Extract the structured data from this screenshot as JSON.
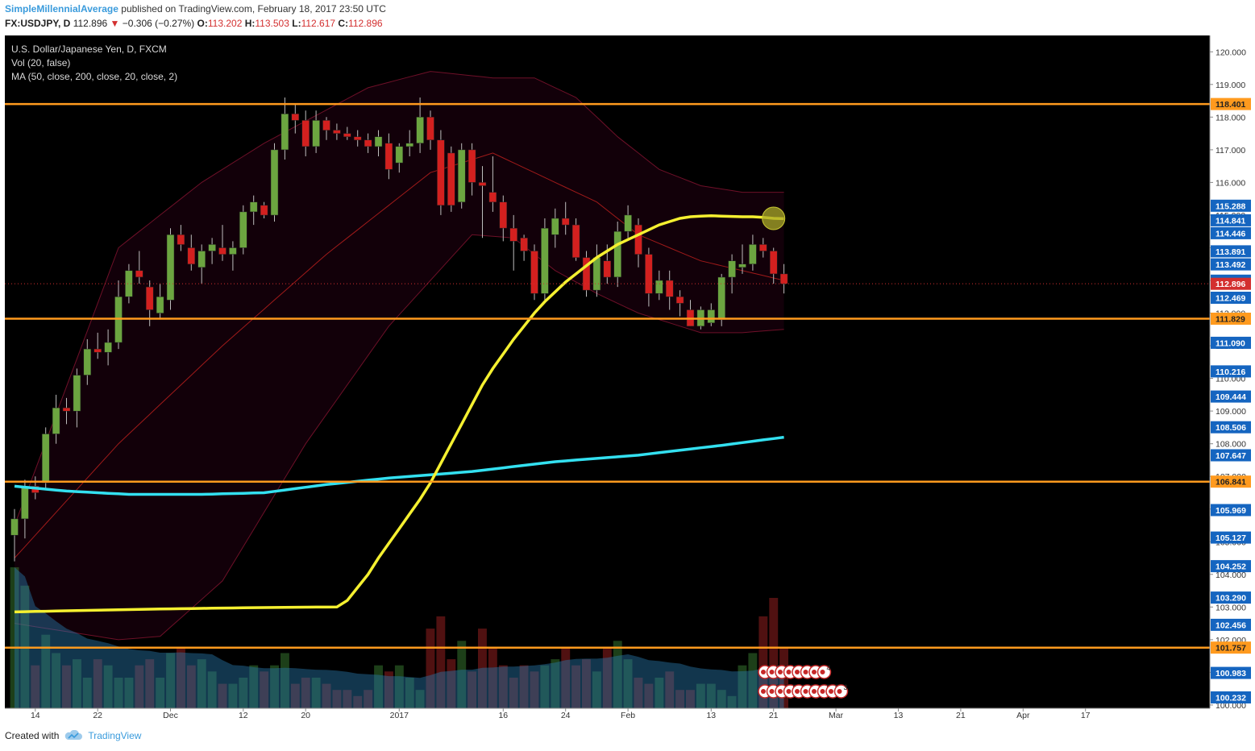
{
  "header": {
    "author": "SimpleMillennialAverage",
    "published": "published on TradingView.com, February 18, 2017 23:50 UTC"
  },
  "symbol_line": {
    "symbol": "FX:USDJPY, D",
    "last": "112.896",
    "arrow": "▼",
    "change": "−0.306 (−0.27%)",
    "open_label": "O:",
    "open": "113.202",
    "high_label": "H:",
    "high": "113.503",
    "low_label": "L:",
    "low": "112.617",
    "close_label": "C:",
    "close": "112.896"
  },
  "legend": {
    "line1": "U.S. Dollar/Japanese Yen, D, FXCM",
    "line2": "Vol (20, false)",
    "line3": "MA (50, close, 200, close, 20, close, 2)"
  },
  "footer": {
    "created_with": "Created with",
    "brand": "TradingView",
    "brand_icon": "tradingview-cloud-icon"
  },
  "colors": {
    "background": "#000000",
    "up_candle": "#6ca540",
    "down_candle": "#d3201f",
    "ma50": "#f5f030",
    "ma200": "#33e0f0",
    "level_line": "#ff9a1e",
    "axis_label_blue": "#1565c0",
    "axis_label_orange": "#ff9a1e",
    "axis_label_red": "#d32f2f"
  },
  "chart_data": {
    "type": "candlestick",
    "y_range": [
      99.9,
      120.5
    ],
    "y_ticks": [
      "120.000",
      "119.000",
      "118.000",
      "117.000",
      "116.000",
      "115.000",
      "114.000",
      "113.000",
      "112.000",
      "111.000",
      "110.000",
      "109.000",
      "108.000",
      "107.000",
      "106.000",
      "105.000",
      "104.000",
      "103.000",
      "102.000",
      "101.000",
      "100.000"
    ],
    "x_tick_labels": [
      "14",
      "22",
      "Dec",
      "12",
      "20",
      "2017",
      "16",
      "24",
      "Feb",
      "13",
      "21",
      "Mar",
      "13",
      "21",
      "Apr",
      "17"
    ],
    "candles": [
      {
        "date": "2016-11-10",
        "open": 105.2,
        "high": 106.0,
        "low": 104.4,
        "close": 105.7
      },
      {
        "date": "2016-11-11",
        "open": 105.7,
        "high": 106.9,
        "low": 105.1,
        "close": 106.7
      },
      {
        "date": "2016-11-14",
        "open": 106.7,
        "high": 107.0,
        "low": 106.3,
        "close": 106.5
      },
      {
        "date": "2016-11-15",
        "open": 106.8,
        "high": 108.5,
        "low": 106.6,
        "close": 108.3
      },
      {
        "date": "2016-11-16",
        "open": 108.3,
        "high": 109.5,
        "low": 108.0,
        "close": 109.1
      },
      {
        "date": "2016-11-17",
        "open": 109.1,
        "high": 109.4,
        "low": 108.6,
        "close": 109.0
      },
      {
        "date": "2016-11-18",
        "open": 109.0,
        "high": 110.3,
        "low": 108.5,
        "close": 110.1
      },
      {
        "date": "2016-11-21",
        "open": 110.1,
        "high": 111.2,
        "low": 109.8,
        "close": 110.9
      },
      {
        "date": "2016-11-22",
        "open": 110.9,
        "high": 111.4,
        "low": 110.6,
        "close": 110.8
      },
      {
        "date": "2016-11-23",
        "open": 110.8,
        "high": 111.5,
        "low": 110.4,
        "close": 111.1
      },
      {
        "date": "2016-11-24",
        "open": 111.1,
        "high": 113.0,
        "low": 110.9,
        "close": 112.5
      },
      {
        "date": "2016-11-25",
        "open": 112.5,
        "high": 113.5,
        "low": 112.3,
        "close": 113.3
      },
      {
        "date": "2016-11-28",
        "open": 113.3,
        "high": 113.9,
        "low": 112.9,
        "close": 113.1
      },
      {
        "date": "2016-11-29",
        "open": 112.8,
        "high": 113.0,
        "low": 111.6,
        "close": 112.1
      },
      {
        "date": "2016-11-30",
        "open": 112.0,
        "high": 112.9,
        "low": 111.8,
        "close": 112.5
      },
      {
        "date": "2016-12-01",
        "open": 112.4,
        "high": 114.6,
        "low": 112.1,
        "close": 114.4
      },
      {
        "date": "2016-12-02",
        "open": 114.4,
        "high": 114.7,
        "low": 113.9,
        "close": 114.1
      },
      {
        "date": "2016-12-05",
        "open": 114.0,
        "high": 114.4,
        "low": 113.3,
        "close": 113.5
      },
      {
        "date": "2016-12-06",
        "open": 113.4,
        "high": 114.1,
        "low": 112.9,
        "close": 113.9
      },
      {
        "date": "2016-12-07",
        "open": 113.9,
        "high": 114.3,
        "low": 113.5,
        "close": 114.1
      },
      {
        "date": "2016-12-08",
        "open": 114.0,
        "high": 114.7,
        "low": 113.6,
        "close": 113.8
      },
      {
        "date": "2016-12-09",
        "open": 113.8,
        "high": 114.2,
        "low": 113.3,
        "close": 114.0
      },
      {
        "date": "2016-12-12",
        "open": 114.0,
        "high": 115.3,
        "low": 113.8,
        "close": 115.1
      },
      {
        "date": "2016-12-13",
        "open": 115.1,
        "high": 115.6,
        "low": 114.7,
        "close": 115.4
      },
      {
        "date": "2016-12-14",
        "open": 115.3,
        "high": 115.4,
        "low": 114.9,
        "close": 115.0
      },
      {
        "date": "2016-12-15",
        "open": 115.0,
        "high": 117.2,
        "low": 114.8,
        "close": 117.0
      },
      {
        "date": "2016-12-16",
        "open": 117.0,
        "high": 118.6,
        "low": 116.7,
        "close": 118.1
      },
      {
        "date": "2016-12-19",
        "open": 118.1,
        "high": 118.4,
        "low": 117.5,
        "close": 117.9
      },
      {
        "date": "2016-12-20",
        "open": 117.9,
        "high": 118.2,
        "low": 116.8,
        "close": 117.1
      },
      {
        "date": "2016-12-21",
        "open": 117.1,
        "high": 118.2,
        "low": 116.9,
        "close": 117.9
      },
      {
        "date": "2016-12-22",
        "open": 117.9,
        "high": 118.0,
        "low": 117.3,
        "close": 117.6
      },
      {
        "date": "2016-12-23",
        "open": 117.6,
        "high": 117.8,
        "low": 117.3,
        "close": 117.5
      },
      {
        "date": "2016-12-26",
        "open": 117.5,
        "high": 117.7,
        "low": 117.3,
        "close": 117.4
      },
      {
        "date": "2016-12-27",
        "open": 117.4,
        "high": 117.6,
        "low": 117.1,
        "close": 117.3
      },
      {
        "date": "2016-12-28",
        "open": 117.3,
        "high": 117.5,
        "low": 116.9,
        "close": 117.1
      },
      {
        "date": "2016-12-29",
        "open": 117.1,
        "high": 117.6,
        "low": 116.8,
        "close": 117.4
      },
      {
        "date": "2016-12-30",
        "open": 117.2,
        "high": 117.5,
        "low": 116.1,
        "close": 116.4
      },
      {
        "date": "2017-01-02",
        "open": 116.6,
        "high": 117.2,
        "low": 116.3,
        "close": 117.1
      },
      {
        "date": "2017-01-03",
        "open": 117.1,
        "high": 117.6,
        "low": 116.8,
        "close": 117.2
      },
      {
        "date": "2017-01-04",
        "open": 117.2,
        "high": 118.6,
        "low": 116.9,
        "close": 118.0
      },
      {
        "date": "2017-01-05",
        "open": 118.0,
        "high": 118.2,
        "low": 117.0,
        "close": 117.3
      },
      {
        "date": "2017-01-06",
        "open": 117.3,
        "high": 117.6,
        "low": 115.0,
        "close": 115.3
      },
      {
        "date": "2017-01-09",
        "open": 116.9,
        "high": 117.1,
        "low": 115.1,
        "close": 115.3
      },
      {
        "date": "2017-01-10",
        "open": 115.4,
        "high": 117.2,
        "low": 115.2,
        "close": 117.0
      },
      {
        "date": "2017-01-11",
        "open": 117.0,
        "high": 117.2,
        "low": 115.6,
        "close": 116.0
      },
      {
        "date": "2017-01-12",
        "open": 116.0,
        "high": 116.5,
        "low": 114.3,
        "close": 115.9
      },
      {
        "date": "2017-01-13",
        "open": 115.7,
        "high": 116.8,
        "low": 115.1,
        "close": 115.4
      },
      {
        "date": "2017-01-16",
        "open": 115.4,
        "high": 115.6,
        "low": 114.2,
        "close": 114.6
      },
      {
        "date": "2017-01-17",
        "open": 114.6,
        "high": 115.0,
        "low": 113.3,
        "close": 114.2
      },
      {
        "date": "2017-01-18",
        "open": 114.3,
        "high": 114.4,
        "low": 113.6,
        "close": 113.9
      },
      {
        "date": "2017-01-19",
        "open": 113.9,
        "high": 114.1,
        "low": 112.4,
        "close": 112.6
      },
      {
        "date": "2017-01-20",
        "open": 112.6,
        "high": 114.9,
        "low": 112.4,
        "close": 114.6
      },
      {
        "date": "2017-01-23",
        "open": 114.4,
        "high": 115.2,
        "low": 114.0,
        "close": 114.9
      },
      {
        "date": "2017-01-24",
        "open": 114.9,
        "high": 115.4,
        "low": 114.4,
        "close": 114.7
      },
      {
        "date": "2017-01-25",
        "open": 114.7,
        "high": 114.9,
        "low": 113.6,
        "close": 113.7
      },
      {
        "date": "2017-01-26",
        "open": 113.7,
        "high": 113.9,
        "low": 112.5,
        "close": 112.7
      },
      {
        "date": "2017-01-27",
        "open": 112.7,
        "high": 114.1,
        "low": 112.5,
        "close": 113.7
      },
      {
        "date": "2017-01-30",
        "open": 113.6,
        "high": 114.1,
        "low": 112.9,
        "close": 113.1
      },
      {
        "date": "2017-01-31",
        "open": 113.1,
        "high": 114.8,
        "low": 112.8,
        "close": 114.5
      },
      {
        "date": "2017-02-01",
        "open": 114.5,
        "high": 115.3,
        "low": 114.3,
        "close": 115.0
      },
      {
        "date": "2017-02-02",
        "open": 114.7,
        "high": 114.9,
        "low": 113.4,
        "close": 113.8
      },
      {
        "date": "2017-02-03",
        "open": 113.8,
        "high": 114.0,
        "low": 112.2,
        "close": 112.6
      },
      {
        "date": "2017-02-06",
        "open": 112.6,
        "high": 113.3,
        "low": 112.4,
        "close": 113.0
      },
      {
        "date": "2017-02-07",
        "open": 113.0,
        "high": 113.3,
        "low": 112.1,
        "close": 112.5
      },
      {
        "date": "2017-02-08",
        "open": 112.5,
        "high": 112.7,
        "low": 111.9,
        "close": 112.3
      },
      {
        "date": "2017-02-09",
        "open": 112.1,
        "high": 112.4,
        "low": 111.6,
        "close": 111.6
      },
      {
        "date": "2017-02-10",
        "open": 111.6,
        "high": 112.2,
        "low": 111.5,
        "close": 112.1
      },
      {
        "date": "2017-02-13",
        "open": 111.7,
        "high": 112.3,
        "low": 111.6,
        "close": 112.1
      },
      {
        "date": "2017-02-14",
        "open": 111.8,
        "high": 113.2,
        "low": 111.6,
        "close": 113.1
      },
      {
        "date": "2017-02-15",
        "open": 113.1,
        "high": 113.8,
        "low": 112.6,
        "close": 113.6
      },
      {
        "date": "2017-02-16",
        "open": 113.4,
        "high": 114.1,
        "low": 113.2,
        "close": 113.5
      },
      {
        "date": "2017-02-17",
        "open": 113.5,
        "high": 114.4,
        "low": 113.3,
        "close": 114.1
      },
      {
        "date": "2017-02-20",
        "open": 114.1,
        "high": 114.3,
        "low": 113.7,
        "close": 113.9
      },
      {
        "date": "2017-02-21",
        "open": 113.9,
        "high": 114.0,
        "low": 112.9,
        "close": 113.2
      },
      {
        "date": "2017-02-22",
        "open": 113.2,
        "high": 113.5,
        "low": 112.6,
        "close": 112.9
      }
    ],
    "volume": [
      23,
      20,
      7,
      12,
      9,
      7,
      8,
      5,
      8,
      7,
      5,
      5,
      7,
      8,
      5,
      9,
      10,
      7,
      8,
      6,
      4,
      4,
      5,
      7,
      6,
      7,
      9,
      4,
      5,
      5,
      4,
      3,
      3,
      2,
      3,
      7,
      6,
      7,
      5,
      3,
      13,
      15,
      8,
      11,
      6,
      13,
      10,
      7,
      5,
      7,
      6,
      7,
      8,
      10,
      7,
      8,
      6,
      10,
      11,
      8,
      5,
      4,
      5,
      6,
      3,
      3,
      4,
      4,
      3,
      2,
      7,
      9,
      15,
      18,
      10
    ],
    "ma50": [
      103.0,
      103.2,
      103.6,
      104.0,
      104.5,
      104.95,
      105.4,
      105.85,
      106.3,
      106.8,
      107.4,
      108.0,
      108.6,
      109.2,
      109.8,
      110.3,
      110.75,
      111.2,
      111.6,
      112.0,
      112.35,
      112.65,
      112.95,
      113.2,
      113.45,
      113.7,
      113.9,
      114.1,
      114.25,
      114.4,
      114.55,
      114.7,
      114.8,
      114.9,
      114.95,
      114.97,
      114.98,
      114.97,
      114.96,
      114.95,
      114.95,
      114.93,
      114.9,
      114.89
    ],
    "ma50_from_index": 31,
    "ma200_knots": [
      [
        0,
        106.7
      ],
      [
        5,
        106.55
      ],
      [
        11,
        106.45
      ],
      [
        18,
        106.45
      ],
      [
        24,
        106.5
      ],
      [
        30,
        106.75
      ],
      [
        36,
        106.95
      ],
      [
        44,
        107.15
      ],
      [
        52,
        107.45
      ],
      [
        60,
        107.65
      ],
      [
        68,
        107.95
      ],
      [
        74,
        108.2
      ]
    ],
    "bollinger": {
      "period": 20,
      "basis_knots": [
        [
          0,
          104.5
        ],
        [
          10,
          108.0
        ],
        [
          20,
          111.0
        ],
        [
          30,
          113.8
        ],
        [
          40,
          116.3
        ],
        [
          46,
          116.9
        ],
        [
          50,
          116.3
        ],
        [
          56,
          115.4
        ],
        [
          60,
          114.4
        ],
        [
          66,
          113.6
        ],
        [
          74,
          113.0
        ]
      ],
      "upper_knots": [
        [
          0,
          105.5
        ],
        [
          10,
          114.0
        ],
        [
          18,
          116.0
        ],
        [
          24,
          117.2
        ],
        [
          34,
          118.9
        ],
        [
          40,
          119.4
        ],
        [
          46,
          119.2
        ],
        [
          50,
          119.2
        ],
        [
          54,
          118.6
        ],
        [
          58,
          117.4
        ],
        [
          62,
          116.4
        ],
        [
          66,
          115.9
        ],
        [
          70,
          115.7
        ],
        [
          74,
          115.7
        ]
      ],
      "lower_knots": [
        [
          0,
          102.5
        ],
        [
          10,
          102.0
        ],
        [
          14,
          102.1
        ],
        [
          20,
          103.8
        ],
        [
          28,
          108.0
        ],
        [
          36,
          111.6
        ],
        [
          44,
          114.4
        ],
        [
          48,
          114.3
        ],
        [
          52,
          113.3
        ],
        [
          56,
          112.6
        ],
        [
          60,
          112.0
        ],
        [
          66,
          111.4
        ],
        [
          70,
          111.4
        ],
        [
          74,
          111.5
        ]
      ]
    },
    "horizontal_levels": [
      118.401,
      111.829,
      106.841,
      101.757
    ],
    "axis_markers": [
      {
        "label": "118.401",
        "kind": "level"
      },
      {
        "label": "115.288",
        "kind": "blue"
      },
      {
        "label": "114.841",
        "kind": "blue"
      },
      {
        "label": "114.446",
        "kind": "blue"
      },
      {
        "label": "113.891",
        "kind": "blue"
      },
      {
        "label": "113.492",
        "kind": "blue"
      },
      {
        "label": "112.993",
        "kind": "blue"
      },
      {
        "label": "112.896",
        "kind": "last"
      },
      {
        "label": "112.469",
        "kind": "blue"
      },
      {
        "label": "111.829",
        "kind": "level"
      },
      {
        "label": "111.090",
        "kind": "blue"
      },
      {
        "label": "110.216",
        "kind": "blue"
      },
      {
        "label": "109.444",
        "kind": "blue"
      },
      {
        "label": "108.506",
        "kind": "blue"
      },
      {
        "label": "107.647",
        "kind": "blue"
      },
      {
        "label": "106.841",
        "kind": "level"
      },
      {
        "label": "105.969",
        "kind": "blue"
      },
      {
        "label": "105.127",
        "kind": "blue"
      },
      {
        "label": "104.252",
        "kind": "blue"
      },
      {
        "label": "103.290",
        "kind": "blue"
      },
      {
        "label": "102.456",
        "kind": "blue"
      },
      {
        "label": "101.757",
        "kind": "level"
      },
      {
        "label": "100.983",
        "kind": "blue"
      },
      {
        "label": "100.232",
        "kind": "blue"
      }
    ],
    "annotations": [
      {
        "type": "circle",
        "date_index": 73,
        "price": 114.9
      }
    ],
    "event_flags": {
      "row1": [
        "2",
        "3",
        "3",
        "3",
        "10",
        "11",
        "2",
        "4"
      ],
      "row2": [
        "2",
        "3",
        "2",
        "5",
        "2",
        "2",
        "4",
        "5",
        "5",
        "3"
      ]
    }
  }
}
